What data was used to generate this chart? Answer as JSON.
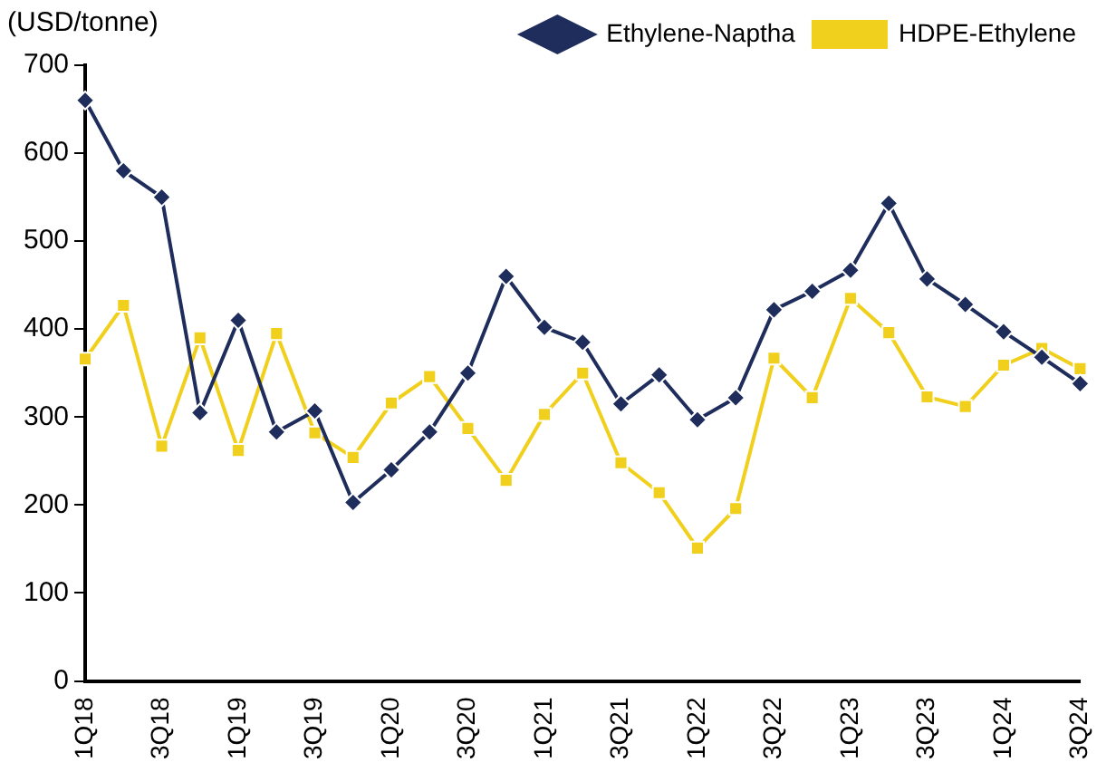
{
  "chart_data": {
    "type": "line",
    "ylabel": "(USD/tonne)",
    "categories": [
      "1Q18",
      null,
      "3Q18",
      null,
      "1Q19",
      null,
      "3Q19",
      null,
      "1Q20",
      null,
      "3Q20",
      null,
      "1Q21",
      null,
      "3Q21",
      null,
      "1Q22",
      null,
      "3Q22",
      null,
      "1Q23",
      null,
      "3Q23",
      null,
      "1Q24",
      null,
      "3Q24"
    ],
    "series": [
      {
        "name": "Ethylene-Naptha",
        "color": "#1f2d5c",
        "marker": "diamond",
        "values": [
          660,
          580,
          550,
          305,
          410,
          283,
          307,
          203,
          240,
          283,
          350,
          460,
          402,
          385,
          315,
          348,
          297,
          322,
          422,
          443,
          467,
          543,
          457,
          428,
          397,
          368,
          338
        ]
      },
      {
        "name": "HDPE-Ethylene",
        "color": "#f0d01c",
        "marker": "square",
        "values": [
          366,
          427,
          267,
          390,
          262,
          395,
          282,
          254,
          316,
          346,
          287,
          228,
          303,
          350,
          248,
          214,
          151,
          196,
          367,
          322,
          435,
          396,
          323,
          312,
          359,
          378,
          355
        ]
      }
    ],
    "ylim": [
      0,
      700
    ],
    "yticks": [
      0,
      100,
      200,
      300,
      400,
      500,
      600,
      700
    ],
    "grid": false,
    "legend": "top"
  }
}
